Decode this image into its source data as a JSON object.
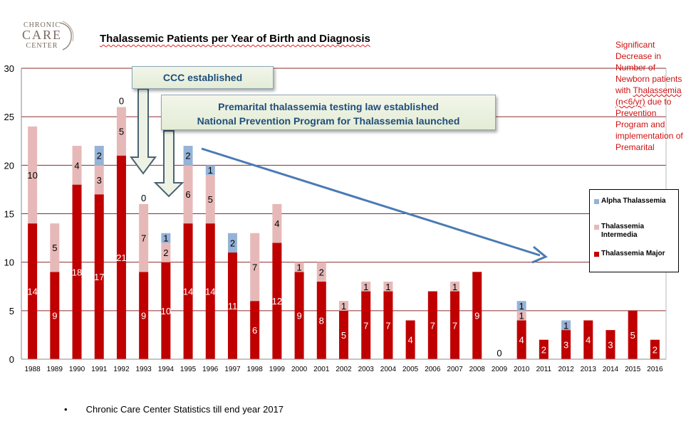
{
  "logo": {
    "line1": "CHRONIC",
    "line2": "CARE",
    "line3": "CENTER"
  },
  "colors": {
    "major": "#c00000",
    "intermedia": "#e6b9b8",
    "alpha": "#95b3d7",
    "gridline": "#8b2c2c",
    "arrow": "#4a7ab5",
    "note": "#d01010"
  },
  "annotations": {
    "ccc": "CCC established",
    "law_line1": "Premarital thalassemia testing law established",
    "law_line2": "National Prevention Program for Thalassemia launched"
  },
  "side_note": {
    "text": "Significant Decrease in Number of Newborn patients with ",
    "underlined": "Thalassemia (n<6/yr)",
    "text2": " due to Prevention Program and implementation of Premarital"
  },
  "footnote": {
    "bullet": "•",
    "text": "Chronic Care Center Statistics till end year 2017"
  },
  "chart_data": {
    "type": "bar",
    "stacked": true,
    "title": "Thalassemic Patients per Year of Birth and Diagnosis",
    "xlabel": "",
    "ylabel": "",
    "ylim": [
      0,
      30
    ],
    "yticks": [
      0,
      5,
      10,
      15,
      20,
      25,
      30
    ],
    "grid": true,
    "legend_position": "right",
    "categories": [
      "1988",
      "1989",
      "1990",
      "1991",
      "1992",
      "1993",
      "1994",
      "1995",
      "1996",
      "1997",
      "1998",
      "1999",
      "2000",
      "2001",
      "2002",
      "2003",
      "2004",
      "2005",
      "2006",
      "2007",
      "2008",
      "2009",
      "2010",
      "2011",
      "2012",
      "2013",
      "2014",
      "2015",
      "2016"
    ],
    "series": [
      {
        "name": "Thalassemia Major",
        "color": "#c00000",
        "values": [
          14,
          9,
          18,
          17,
          21,
          9,
          10,
          14,
          14,
          11,
          6,
          12,
          9,
          8,
          5,
          7,
          7,
          4,
          7,
          7,
          9,
          0,
          4,
          2,
          3,
          4,
          3,
          5,
          2
        ],
        "labels": [
          "14",
          "9",
          "18",
          "17",
          "21",
          "9",
          "10",
          "14",
          "14",
          "11",
          "6",
          "12",
          "9",
          "8",
          "5",
          "7",
          "7",
          "4",
          "7",
          "7",
          "9",
          "0",
          "4",
          "2",
          "3",
          "4",
          "3",
          "5",
          "2"
        ]
      },
      {
        "name": "Thalassemia Intermedia",
        "color": "#e6b9b8",
        "values": [
          10,
          5,
          4,
          3,
          5,
          7,
          2,
          6,
          5,
          0,
          7,
          4,
          1,
          2,
          1,
          1,
          1,
          0,
          0,
          1,
          0,
          0,
          1,
          0,
          0,
          0,
          0,
          0,
          0
        ],
        "labels": [
          "10",
          "5",
          "4",
          "3",
          "5",
          "7",
          "2",
          "6",
          "5",
          "",
          "7",
          "4",
          "1",
          "2",
          "1",
          "1",
          "1",
          "",
          "",
          "1",
          "",
          "",
          "1",
          "",
          "",
          "",
          "",
          "",
          ""
        ]
      },
      {
        "name": "Alpha Thalassemia",
        "color": "#95b3d7",
        "values": [
          0,
          0,
          0,
          2,
          0,
          0,
          1,
          2,
          1,
          2,
          0,
          0,
          0,
          0,
          0,
          0,
          0,
          0,
          0,
          0,
          0,
          0,
          1,
          0,
          1,
          0,
          0,
          0,
          0
        ],
        "labels": [
          "",
          "",
          "",
          "2",
          "0",
          "0",
          "1",
          "2",
          "1",
          "2",
          "",
          "",
          "",
          "",
          "",
          "",
          "",
          "",
          "",
          "",
          "",
          "",
          "1",
          "",
          "1",
          "",
          "",
          "",
          ""
        ]
      }
    ],
    "legend": [
      "Alpha Thalassemia",
      "Thalassemia Intermedia",
      "Thalassemia Major"
    ]
  }
}
